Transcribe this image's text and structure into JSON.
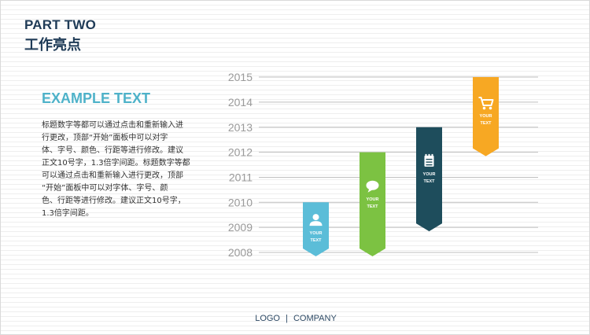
{
  "header": {
    "part": "PART TWO",
    "subtitle": "工作亮点"
  },
  "left_panel": {
    "title": "EXAMPLE TEXT",
    "body": "标题数字等都可以通过点击和重新输入进\n行更改，顶部“开始”面板中可以对字\n体、字号、颜色、行距等进行修改。建议\n正文10号字，1.3倍字间距。标题数字等都\n可以通过点击和重新输入进行更改，顶部\n“开始”面板中可以对字体、字号、颜\n色、行距等进行修改。建议正文10号字，\n1.3倍字间距。"
  },
  "chart_data": {
    "type": "bar",
    "y_ticks": [
      2008,
      2009,
      2010,
      2011,
      2012,
      2013,
      2014,
      2015
    ],
    "ylim": [
      2008,
      2015
    ],
    "grid": true,
    "bars": [
      {
        "start": 2010,
        "end": 2008,
        "color": "#5bbdd8",
        "icon": "user-icon",
        "label": "YOUR\nTEXT"
      },
      {
        "start": 2012,
        "end": 2008,
        "color": "#7cc242",
        "icon": "chat-bubble-icon",
        "label": "YOUR\nTEXT"
      },
      {
        "start": 2013,
        "end": 2009,
        "color": "#1e4d5c",
        "icon": "notepad-icon",
        "label": "YOUR\nTEXT"
      },
      {
        "start": 2015,
        "end": 2012,
        "color": "#f7a823",
        "icon": "shopping-cart-icon",
        "label": "YOUR\nTEXT"
      }
    ]
  },
  "footer": {
    "logo": "LOGO",
    "separator": "|",
    "company": "COMPANY"
  }
}
